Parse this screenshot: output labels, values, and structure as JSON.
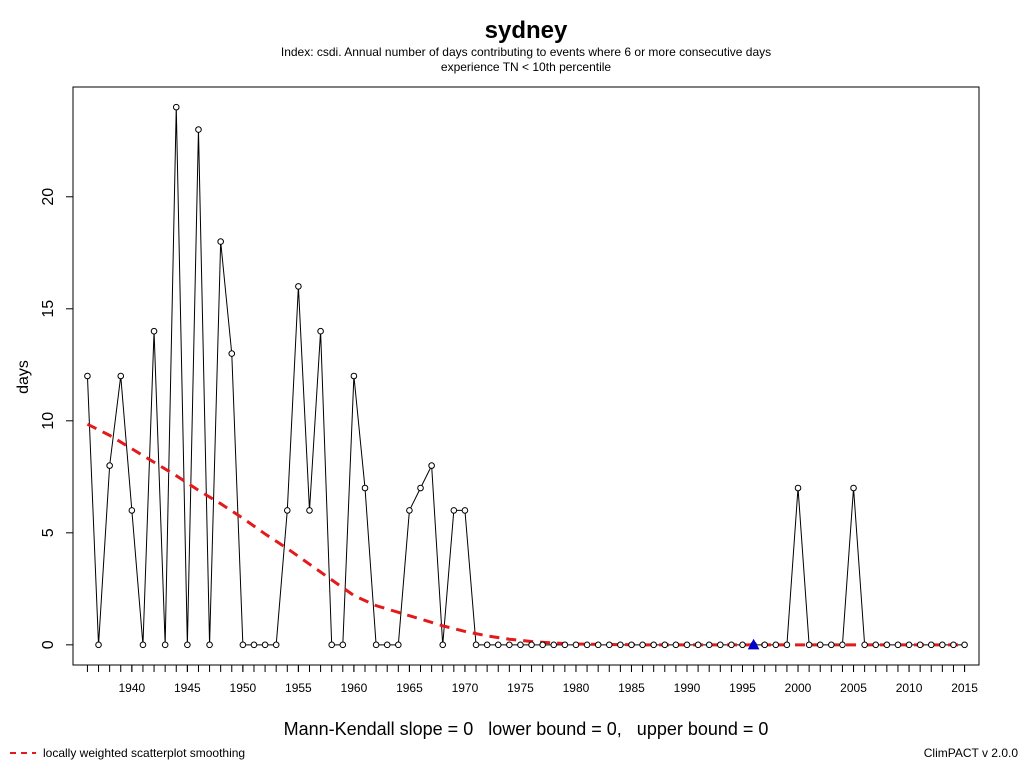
{
  "chart_data": {
    "type": "line",
    "title": "sydney",
    "subtitle_line1": "Index: csdi. Annual number of days contributing to events where 6 or more consecutive days",
    "subtitle_line2": "experience TN < 10th percentile",
    "xlabel": "",
    "ylabel": "days",
    "xlim": [
      1934.7,
      2016.3
    ],
    "ylim": [
      -0.9,
      24.9
    ],
    "x_ticks": [
      1940,
      1945,
      1950,
      1955,
      1960,
      1965,
      1970,
      1975,
      1980,
      1985,
      1990,
      1995,
      2000,
      2005,
      2010,
      2015
    ],
    "y_ticks": [
      0,
      5,
      10,
      15,
      20
    ],
    "grid": false,
    "series": [
      {
        "style": "points-and-lines",
        "color": "#000000",
        "x": [
          1936,
          1937,
          1938,
          1939,
          1940,
          1941,
          1942,
          1943,
          1944,
          1945,
          1946,
          1947,
          1948,
          1949,
          1950,
          1951,
          1952,
          1953,
          1954,
          1955,
          1956,
          1957,
          1958,
          1959,
          1960,
          1961,
          1962,
          1963,
          1964,
          1965,
          1966,
          1967,
          1968,
          1969,
          1970,
          1971,
          1972,
          1973,
          1974,
          1975,
          1976,
          1977,
          1978,
          1979,
          1980,
          1981,
          1982,
          1983,
          1984,
          1985,
          1986,
          1987,
          1988,
          1989,
          1990,
          1991,
          1992,
          1993,
          1994,
          1995,
          1996,
          1997,
          1998,
          1999,
          2000,
          2001,
          2002,
          2003,
          2004,
          2005,
          2006,
          2007,
          2008,
          2009,
          2010,
          2011,
          2012,
          2013,
          2014,
          2015
        ],
        "y": [
          12,
          0,
          8,
          12,
          6,
          0,
          14,
          0,
          24,
          0,
          23,
          0,
          18,
          13,
          0,
          0,
          0,
          0,
          6,
          16,
          6,
          14,
          0,
          0,
          12,
          7,
          0,
          0,
          0,
          6,
          7,
          8,
          0,
          6,
          6,
          0,
          0,
          0,
          0,
          0,
          0,
          0,
          0,
          0,
          0,
          0,
          0,
          0,
          0,
          0,
          0,
          0,
          0,
          0,
          0,
          0,
          0,
          0,
          0,
          0,
          0,
          0,
          0,
          0,
          7,
          0,
          0,
          0,
          0,
          7,
          0,
          0,
          0,
          0,
          0,
          0,
          0,
          0,
          0,
          0
        ]
      },
      {
        "name": "locally weighted scatterplot smoothing",
        "style": "dashed",
        "color": "#e31a1c",
        "x": [
          1936,
          1938,
          1940,
          1942,
          1944,
          1946,
          1948,
          1950,
          1952,
          1954,
          1956,
          1958,
          1960,
          1962,
          1964,
          1966,
          1968,
          1970,
          1972,
          1974,
          1976,
          1978,
          1980,
          1982,
          1984,
          1986,
          1988,
          1990,
          2000,
          2015
        ],
        "y": [
          9.85,
          9.35,
          8.75,
          8.15,
          7.55,
          6.9,
          6.3,
          5.65,
          4.95,
          4.3,
          3.6,
          2.9,
          2.2,
          1.75,
          1.45,
          1.15,
          0.85,
          0.6,
          0.4,
          0.25,
          0.15,
          0.08,
          0.04,
          0.02,
          0.01,
          0.0,
          0.0,
          0.0,
          0.0,
          0.0
        ]
      }
    ],
    "trend_marker": {
      "x": 1996,
      "y": 0,
      "color": "#0000cc",
      "marker": "triangle"
    },
    "stats_text": "Mann-Kendall slope = 0   lower bound = 0,   upper bound = 0",
    "legend": {
      "label": "locally weighted scatterplot smoothing",
      "placement": "bottom-left"
    },
    "credit": "ClimPACT v 2.0.0"
  }
}
